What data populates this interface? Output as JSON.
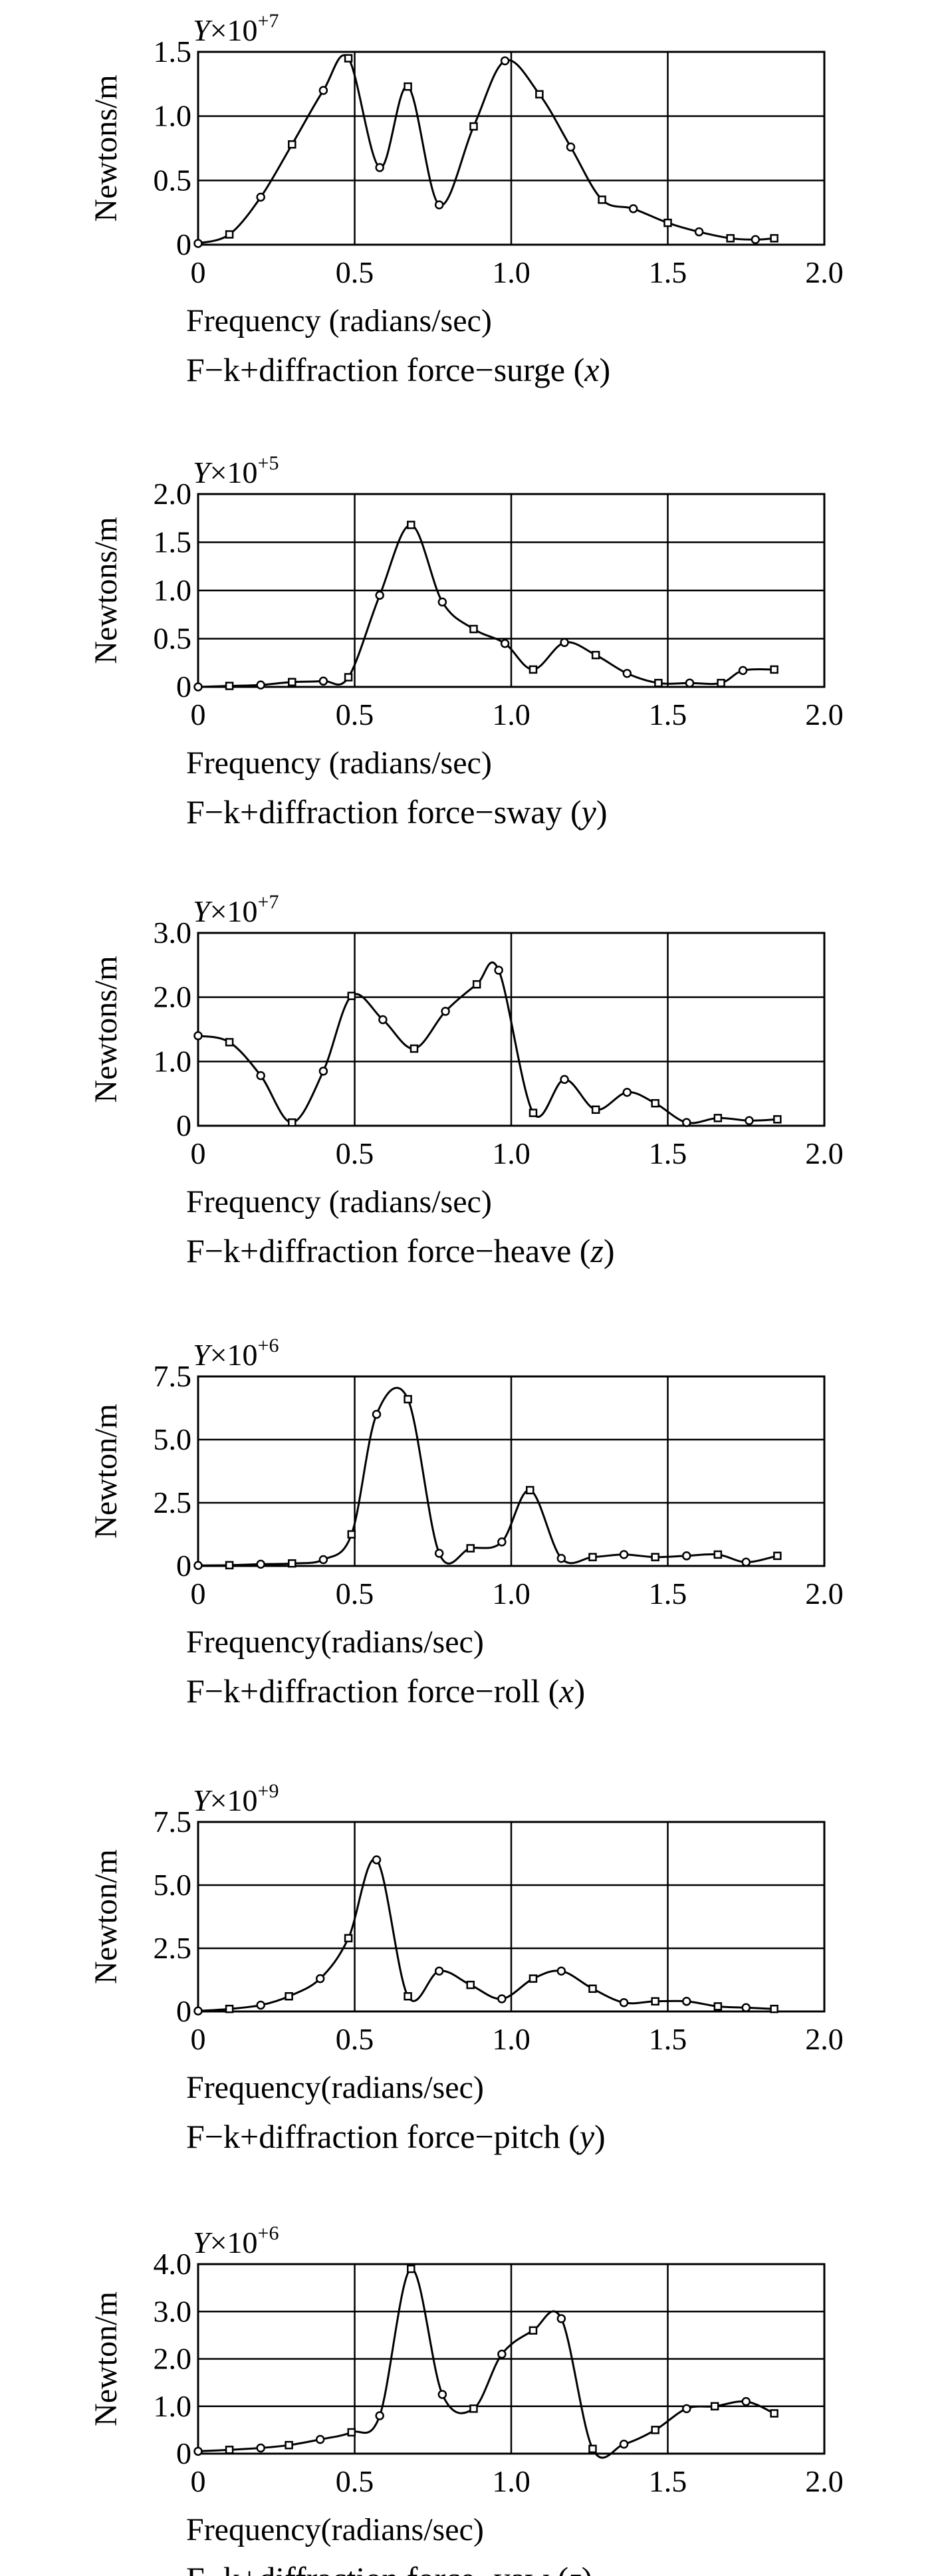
{
  "chart_data": [
    {
      "type": "line",
      "ylabel": "Newtons/m",
      "xlabel": "Frequency (radians/sec)",
      "caption_main": "F−k+diffraction force−surge (",
      "caption_var": "x",
      "caption_end": ")",
      "multiplier_var": "Y",
      "multiplier_base": "×10",
      "multiplier_exp": "+7",
      "xlim": [
        0,
        2.0
      ],
      "ylim": [
        0,
        1.5
      ],
      "xticks": [
        0,
        0.5,
        1.0,
        1.5,
        2.0
      ],
      "xtick_labels": [
        "0",
        "0.5",
        "1.0",
        "1.5",
        "2.0"
      ],
      "yticks": [
        0,
        0.5,
        1.0,
        1.5
      ],
      "ytick_labels": [
        "0",
        "0.5",
        "1.0",
        "1.5"
      ],
      "grid": true,
      "x": [
        0.0,
        0.1,
        0.2,
        0.3,
        0.4,
        0.48,
        0.58,
        0.67,
        0.77,
        0.88,
        0.98,
        1.09,
        1.19,
        1.29,
        1.39,
        1.5,
        1.6,
        1.7,
        1.78,
        1.84
      ],
      "y": [
        0.01,
        0.08,
        0.37,
        0.78,
        1.2,
        1.45,
        0.6,
        1.23,
        0.31,
        0.92,
        1.43,
        1.17,
        0.76,
        0.35,
        0.28,
        0.17,
        0.1,
        0.05,
        0.04,
        0.05
      ]
    },
    {
      "type": "line",
      "ylabel": "Newtons/m",
      "xlabel": "Frequency (radians/sec)",
      "caption_main": "F−k+diffraction force−sway (",
      "caption_var": "y",
      "caption_end": ")",
      "multiplier_var": "Y",
      "multiplier_base": "×10",
      "multiplier_exp": "+5",
      "xlim": [
        0,
        2.0
      ],
      "ylim": [
        0,
        2.0
      ],
      "xticks": [
        0,
        0.5,
        1.0,
        1.5,
        2.0
      ],
      "xtick_labels": [
        "0",
        "0.5",
        "1.0",
        "1.5",
        "2.0"
      ],
      "yticks": [
        0,
        0.5,
        1.0,
        1.5,
        2.0
      ],
      "ytick_labels": [
        "0",
        "0.5",
        "1.0",
        "1.5",
        "2.0"
      ],
      "grid": true,
      "x": [
        0.0,
        0.1,
        0.2,
        0.3,
        0.4,
        0.48,
        0.58,
        0.68,
        0.78,
        0.88,
        0.98,
        1.07,
        1.17,
        1.27,
        1.37,
        1.47,
        1.57,
        1.67,
        1.74,
        1.84
      ],
      "y": [
        0.0,
        0.01,
        0.02,
        0.05,
        0.06,
        0.1,
        0.95,
        1.68,
        0.88,
        0.6,
        0.45,
        0.18,
        0.46,
        0.33,
        0.14,
        0.04,
        0.04,
        0.04,
        0.17,
        0.18
      ]
    },
    {
      "type": "line",
      "ylabel": "Newtons/m",
      "xlabel": "Frequency (radians/sec)",
      "caption_main": "F−k+diffraction force−heave (",
      "caption_var": "z",
      "caption_end": ")",
      "multiplier_var": "Y",
      "multiplier_base": "×10",
      "multiplier_exp": "+7",
      "xlim": [
        0,
        2.0
      ],
      "ylim": [
        0,
        3.0
      ],
      "xticks": [
        0,
        0.5,
        1.0,
        1.5,
        2.0
      ],
      "xtick_labels": [
        "0",
        "0.5",
        "1.0",
        "1.5",
        "2.0"
      ],
      "yticks": [
        0,
        1.0,
        2.0,
        3.0
      ],
      "ytick_labels": [
        "0",
        "1.0",
        "2.0",
        "3.0"
      ],
      "grid": true,
      "x": [
        0.0,
        0.1,
        0.2,
        0.3,
        0.4,
        0.49,
        0.59,
        0.69,
        0.79,
        0.89,
        0.96,
        1.07,
        1.17,
        1.27,
        1.37,
        1.46,
        1.56,
        1.66,
        1.76,
        1.85
      ],
      "y": [
        1.4,
        1.3,
        0.78,
        0.05,
        0.85,
        2.02,
        1.65,
        1.2,
        1.78,
        2.2,
        2.42,
        0.2,
        0.72,
        0.25,
        0.52,
        0.35,
        0.05,
        0.12,
        0.08,
        0.1
      ]
    },
    {
      "type": "line",
      "ylabel": "Newton/m",
      "xlabel": "Frequency(radians/sec)",
      "caption_main": "F−k+diffraction force−roll (",
      "caption_var": "x",
      "caption_end": ")",
      "multiplier_var": "Y",
      "multiplier_base": "×10",
      "multiplier_exp": "+6",
      "xlim": [
        0,
        2.0
      ],
      "ylim": [
        0,
        7.5
      ],
      "xticks": [
        0,
        0.5,
        1.0,
        1.5,
        2.0
      ],
      "xtick_labels": [
        "0",
        "0.5",
        "1.0",
        "1.5",
        "2.0"
      ],
      "yticks": [
        0,
        2.5,
        5.0,
        7.5
      ],
      "ytick_labels": [
        "0",
        "2.5",
        "5.0",
        "7.5"
      ],
      "grid": true,
      "x": [
        0.0,
        0.1,
        0.2,
        0.3,
        0.4,
        0.49,
        0.57,
        0.67,
        0.77,
        0.87,
        0.97,
        1.06,
        1.16,
        1.26,
        1.36,
        1.46,
        1.56,
        1.66,
        1.75,
        1.85
      ],
      "y": [
        0.02,
        0.03,
        0.07,
        0.1,
        0.25,
        1.25,
        6.0,
        6.6,
        0.5,
        0.7,
        0.95,
        3.0,
        0.3,
        0.35,
        0.45,
        0.35,
        0.4,
        0.45,
        0.15,
        0.4
      ]
    },
    {
      "type": "line",
      "ylabel": "Newton/m",
      "xlabel": "Frequency(radians/sec)",
      "caption_main": "F−k+diffraction force−pitch (",
      "caption_var": "y",
      "caption_end": ")",
      "multiplier_var": "Y",
      "multiplier_base": "×10",
      "multiplier_exp": "+9",
      "xlim": [
        0,
        2.0
      ],
      "ylim": [
        0,
        7.5
      ],
      "xticks": [
        0,
        0.5,
        1.0,
        1.5,
        2.0
      ],
      "xtick_labels": [
        "0",
        "0.5",
        "1.0",
        "1.5",
        "2.0"
      ],
      "yticks": [
        0,
        2.5,
        5.0,
        7.5
      ],
      "ytick_labels": [
        "0",
        "2.5",
        "5.0",
        "7.5"
      ],
      "grid": true,
      "x": [
        0.0,
        0.1,
        0.2,
        0.29,
        0.39,
        0.48,
        0.57,
        0.67,
        0.77,
        0.87,
        0.97,
        1.07,
        1.16,
        1.26,
        1.36,
        1.46,
        1.56,
        1.66,
        1.75,
        1.84
      ],
      "y": [
        0.02,
        0.1,
        0.25,
        0.6,
        1.3,
        2.9,
        6.0,
        0.6,
        1.6,
        1.05,
        0.5,
        1.3,
        1.6,
        0.9,
        0.35,
        0.4,
        0.4,
        0.2,
        0.15,
        0.1
      ]
    },
    {
      "type": "line",
      "ylabel": "Newton/m",
      "xlabel": "Frequency(radians/sec)",
      "caption_main": "F−k+diffraction force−yaw (",
      "caption_var": "z",
      "caption_end": ")",
      "multiplier_var": "Y",
      "multiplier_base": "×10",
      "multiplier_exp": "+6",
      "xlim": [
        0,
        2.0
      ],
      "ylim": [
        0,
        4.0
      ],
      "xticks": [
        0,
        0.5,
        1.0,
        1.5,
        2.0
      ],
      "xtick_labels": [
        "0",
        "0.5",
        "1.0",
        "1.5",
        "2.0"
      ],
      "yticks": [
        0,
        1.0,
        2.0,
        3.0,
        4.0
      ],
      "ytick_labels": [
        "0",
        "1.0",
        "2.0",
        "3.0",
        "4.0"
      ],
      "grid": true,
      "x": [
        0.0,
        0.1,
        0.2,
        0.29,
        0.39,
        0.49,
        0.58,
        0.68,
        0.78,
        0.88,
        0.97,
        1.07,
        1.16,
        1.26,
        1.36,
        1.46,
        1.56,
        1.65,
        1.75,
        1.84
      ],
      "y": [
        0.05,
        0.08,
        0.12,
        0.18,
        0.3,
        0.45,
        0.8,
        3.9,
        1.25,
        0.95,
        2.1,
        2.6,
        2.85,
        0.1,
        0.2,
        0.5,
        0.95,
        1.0,
        1.1,
        0.85
      ]
    }
  ]
}
